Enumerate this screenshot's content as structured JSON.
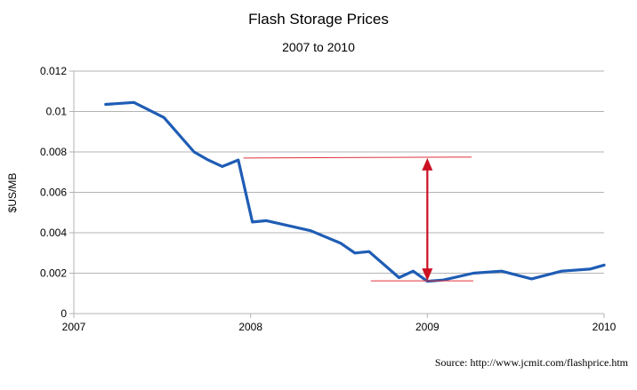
{
  "chart_data": {
    "type": "line",
    "title": "Flash Storage Prices",
    "subtitle": "2007 to 2010",
    "xlabel": "",
    "ylabel": "$US/MB",
    "xlim": [
      2007,
      2010
    ],
    "ylim": [
      0,
      0.012
    ],
    "x_ticks": [
      "2007",
      "2008",
      "2009",
      "2010"
    ],
    "y_ticks": [
      "0",
      "0.002",
      "0.004",
      "0.006",
      "0.008",
      "0.01",
      "0.012"
    ],
    "grid": true,
    "legend": "none",
    "source": "Source: http://www.jcmit.com/flashprice.htm",
    "series": [
      {
        "color": "#1f5db5",
        "x": [
          2007.18,
          2007.34,
          2007.51,
          2007.68,
          2007.76,
          2007.84,
          2007.93,
          2008.01,
          2008.09,
          2008.34,
          2008.51,
          2008.59,
          2008.67,
          2008.84,
          2008.92,
          2009.0,
          2009.09,
          2009.26,
          2009.42,
          2009.59,
          2009.76,
          2009.92,
          2010.0
        ],
        "y": [
          0.01035,
          0.01045,
          0.0097,
          0.008,
          0.0076,
          0.00728,
          0.0076,
          0.00453,
          0.0046,
          0.0041,
          0.00348,
          0.003,
          0.00307,
          0.00178,
          0.0021,
          0.0016,
          0.00166,
          0.002,
          0.0021,
          0.00172,
          0.0021,
          0.0022,
          0.0024
        ]
      }
    ],
    "annotations": {
      "line_color": "#e0323c",
      "arrow_color": "#cc1122",
      "high_line": {
        "x": [
          2007.96,
          2009.25
        ],
        "y": 0.0077
      },
      "low_line": {
        "x": [
          2008.68,
          2009.26
        ],
        "y": 0.00162
      },
      "arrow": {
        "x": 2009.0,
        "y_top": 0.0077,
        "y_bottom": 0.00162
      }
    }
  }
}
